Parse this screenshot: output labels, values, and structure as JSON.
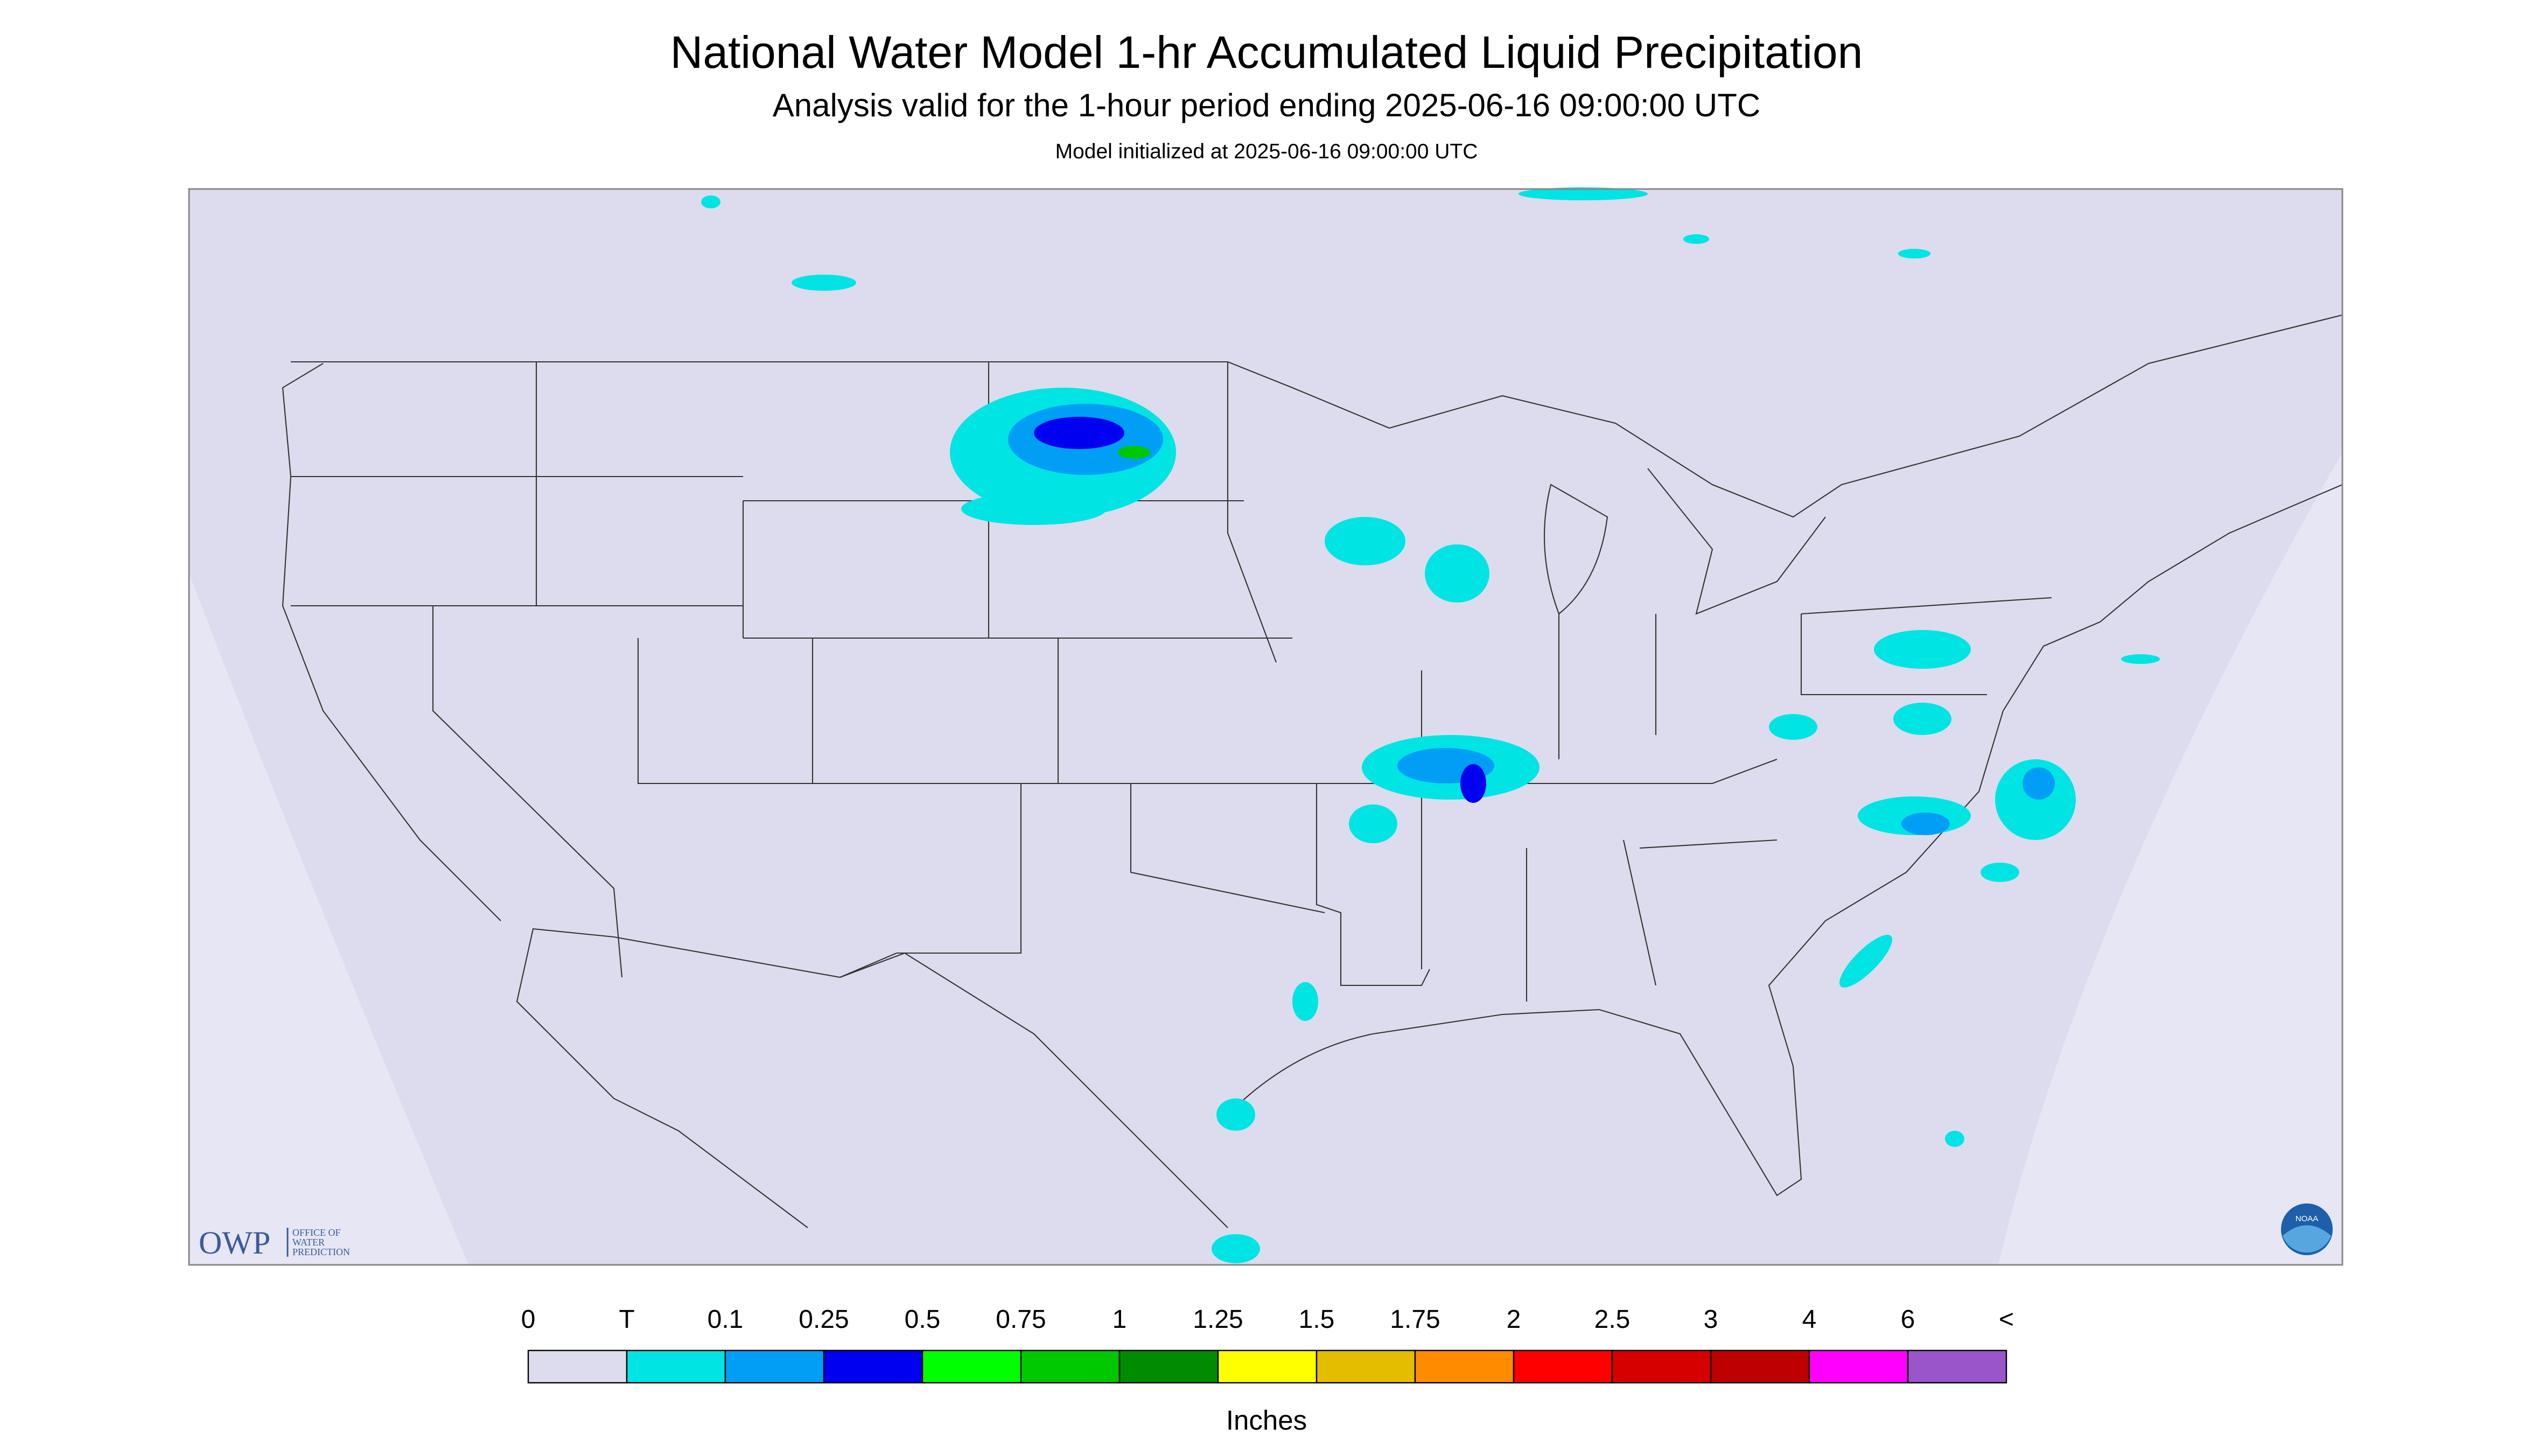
{
  "header": {
    "title": "National Water Model 1-hr Accumulated Liquid Precipitation",
    "subtitle": "Analysis valid for the 1-hour period ending 2025-06-16 09:00:00 UTC",
    "note": "Model initialized at 2025-06-16 09:00:00 UTC"
  },
  "legend": {
    "labels": [
      "0",
      "T",
      "0.1",
      "0.25",
      "0.5",
      "0.75",
      "1",
      "1.25",
      "1.5",
      "1.75",
      "2",
      "2.5",
      "3",
      "4",
      "6",
      "<"
    ],
    "colors": [
      "#dcdcee",
      "#00e4e4",
      "#009ff5",
      "#0000f0",
      "#00ff00",
      "#00c800",
      "#008c00",
      "#ffff00",
      "#e4bc00",
      "#ff8c00",
      "#ff0000",
      "#d70000",
      "#bd0000",
      "#ff00ff",
      "#9955c9"
    ],
    "unit": "Inches"
  },
  "logos": {
    "owp": "OWP",
    "owp_name": [
      "OFFICE OF",
      "WATER",
      "PREDICTION"
    ],
    "noaa": "NOAA"
  }
}
